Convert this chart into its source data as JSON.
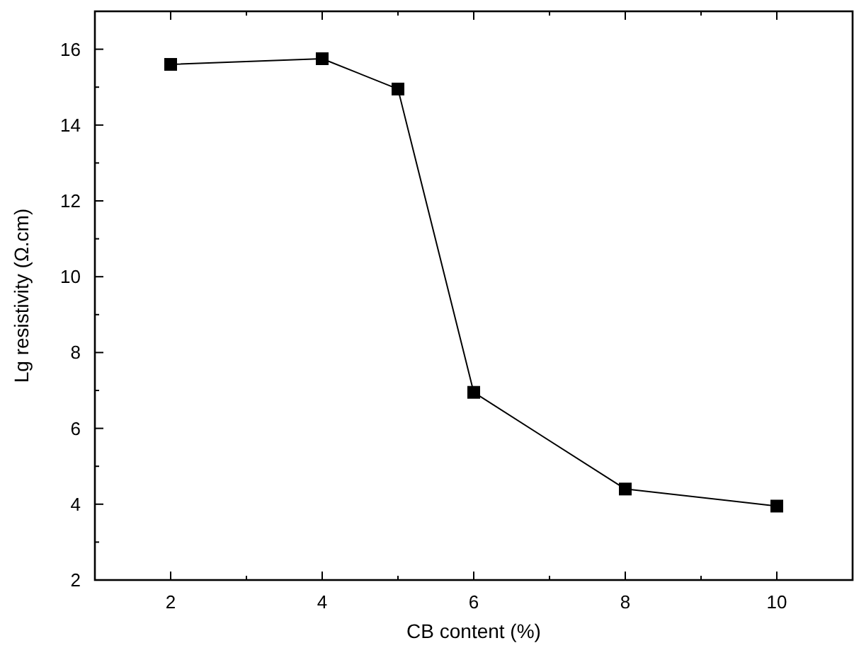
{
  "chart_data": {
    "type": "line",
    "xlabel": "CB content (%)",
    "ylabel": "Lg resistivity (Ω.cm)",
    "x": [
      2,
      4,
      5,
      6,
      8,
      10
    ],
    "series": [
      {
        "color": "#000000",
        "values": [
          15.6,
          15.75,
          14.95,
          6.95,
          4.4,
          3.95
        ]
      }
    ],
    "xlim": [
      1,
      11
    ],
    "xticks": [
      {
        "value": 1,
        "label": null
      },
      2,
      {
        "value": 3,
        "label": null
      },
      4,
      {
        "value": 5,
        "label": null
      },
      6,
      {
        "value": 7,
        "label": null
      },
      8,
      {
        "value": 9,
        "label": null
      },
      10,
      {
        "value": 11,
        "label": null
      }
    ],
    "ylim": [
      2,
      17
    ],
    "yticks": [
      2,
      {
        "value": 3,
        "label": null
      },
      4,
      {
        "value": 5,
        "label": null
      },
      6,
      {
        "value": 7,
        "label": null
      },
      8,
      {
        "value": 9,
        "label": null
      },
      10,
      {
        "value": 11,
        "label": null
      },
      12,
      {
        "value": 13,
        "label": null
      },
      14,
      {
        "value": 15,
        "label": null
      },
      16,
      {
        "value": 17,
        "label": null
      }
    ],
    "grid": false,
    "marker": "square",
    "line_style": "solid"
  }
}
